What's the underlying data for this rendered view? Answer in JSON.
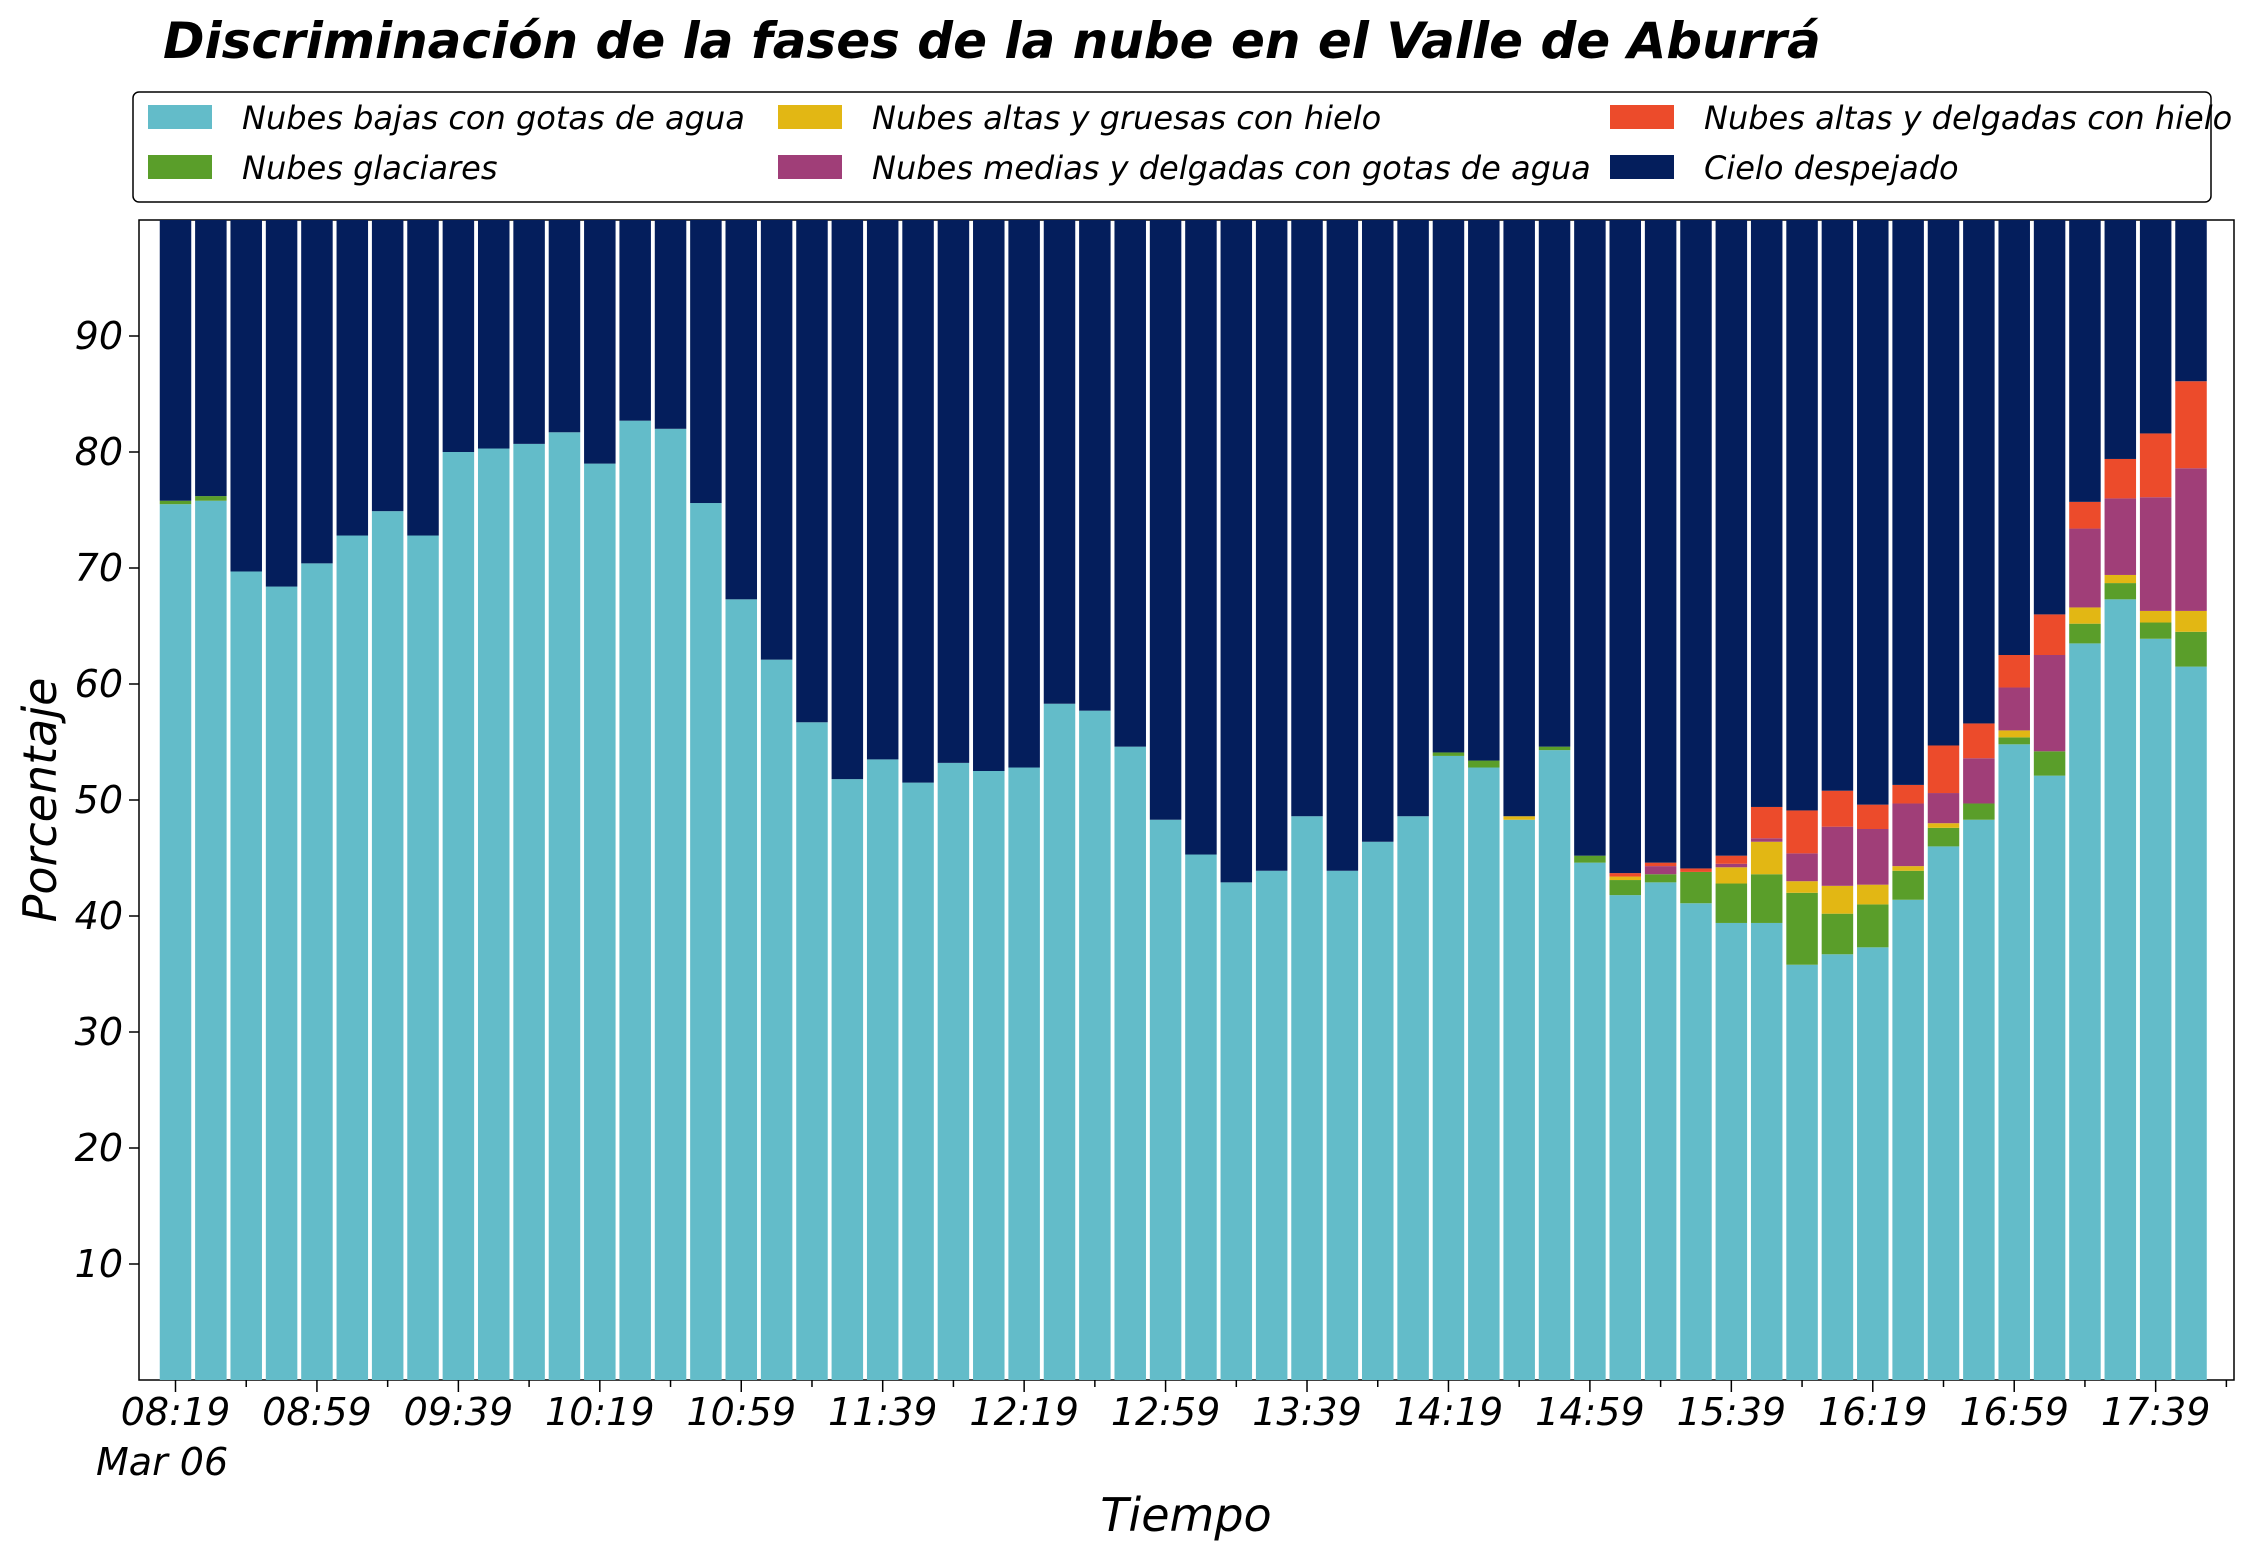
{
  "chart_data": {
    "type": "bar",
    "stacked": true,
    "title": "Discriminación de la fases de la nube en el Valle de Aburrá",
    "xlabel": "Tiempo",
    "ylabel": "Porcentaje",
    "ylim": [
      0,
      100
    ],
    "yticks": [
      10,
      20,
      30,
      40,
      50,
      60,
      70,
      80,
      90
    ],
    "xtick_labels": [
      "08:19",
      "08:59",
      "09:39",
      "10:19",
      "10:59",
      "11:39",
      "12:19",
      "12:59",
      "13:39",
      "14:19",
      "14:59",
      "15:39",
      "16:19",
      "16:59",
      "17:39"
    ],
    "date_label": "Mar 06",
    "legend_position": "top",
    "grid": false,
    "categories": [
      "08:19",
      "08:29",
      "08:39",
      "08:49",
      "08:59",
      "09:09",
      "09:19",
      "09:29",
      "09:39",
      "09:49",
      "09:59",
      "10:09",
      "10:19",
      "10:29",
      "10:39",
      "10:49",
      "10:59",
      "11:09",
      "11:19",
      "11:29",
      "11:39",
      "11:49",
      "11:59",
      "12:09",
      "12:19",
      "12:29",
      "12:39",
      "12:49",
      "12:59",
      "13:09",
      "13:19",
      "13:29",
      "13:39",
      "13:49",
      "13:59",
      "14:09",
      "14:19",
      "14:29",
      "14:39",
      "14:49",
      "14:59",
      "15:09",
      "15:19",
      "15:29",
      "15:39",
      "15:49",
      "15:59",
      "16:09",
      "16:19",
      "16:29",
      "16:39",
      "16:49",
      "16:59",
      "17:09",
      "17:19",
      "17:29",
      "17:39",
      "17:49"
    ],
    "series": [
      {
        "name": "Nubes bajas con gotas de agua",
        "color": "#63bcc9",
        "values": [
          75.5,
          75.8,
          69.7,
          68.4,
          70.4,
          72.8,
          74.9,
          72.8,
          80.0,
          80.3,
          80.7,
          81.7,
          79.0,
          82.7,
          82.0,
          75.6,
          67.3,
          62.1,
          56.7,
          51.8,
          53.5,
          51.5,
          53.2,
          52.5,
          52.8,
          58.3,
          57.7,
          54.6,
          48.3,
          45.3,
          42.9,
          43.9,
          48.6,
          43.9,
          46.4,
          48.6,
          53.8,
          52.8,
          48.3,
          54.3,
          44.6,
          41.8,
          42.9,
          41.1,
          39.4,
          39.4,
          35.8,
          36.7,
          37.3,
          41.4,
          46.0,
          48.3,
          54.8,
          52.1,
          63.5,
          67.3,
          63.9,
          61.5
        ]
      },
      {
        "name": "Nubes glaciares",
        "color": "#5a9e2a",
        "values": [
          0.3,
          0.4,
          0,
          0,
          0,
          0,
          0,
          0,
          0,
          0,
          0,
          0,
          0,
          0,
          0,
          0,
          0,
          0,
          0,
          0,
          0,
          0,
          0,
          0,
          0,
          0,
          0,
          0,
          0,
          0,
          0,
          0,
          0,
          0,
          0,
          0,
          0.3,
          0.6,
          0,
          0.3,
          0.6,
          1.3,
          0.7,
          2.7,
          3.4,
          4.2,
          6.2,
          3.5,
          3.7,
          2.5,
          1.6,
          1.4,
          0.6,
          2.1,
          1.7,
          1.4,
          1.4,
          3.0
        ]
      },
      {
        "name": "Nubes altas y gruesas con hielo",
        "color": "#e2b714",
        "values": [
          0,
          0,
          0,
          0,
          0,
          0,
          0,
          0,
          0,
          0,
          0,
          0,
          0,
          0,
          0,
          0,
          0,
          0,
          0,
          0,
          0,
          0,
          0,
          0,
          0,
          0,
          0,
          0,
          0,
          0,
          0,
          0,
          0,
          0,
          0,
          0,
          0,
          0,
          0.3,
          0,
          0,
          0.3,
          0,
          0,
          1.4,
          2.8,
          1.0,
          2.4,
          1.7,
          0.4,
          0.4,
          0,
          0.6,
          0,
          1.4,
          0.7,
          1.0,
          1.8
        ]
      },
      {
        "name": "Nubes medias y delgadas con gotas de agua",
        "color": "#a03e78",
        "values": [
          0,
          0,
          0,
          0,
          0,
          0,
          0,
          0,
          0,
          0,
          0,
          0,
          0,
          0,
          0,
          0,
          0,
          0,
          0,
          0,
          0,
          0,
          0,
          0,
          0,
          0,
          0,
          0,
          0,
          0,
          0,
          0,
          0,
          0,
          0,
          0,
          0,
          0,
          0,
          0,
          0,
          0,
          0.7,
          0,
          0.3,
          0.3,
          2.4,
          5.1,
          4.8,
          5.4,
          2.6,
          3.9,
          3.7,
          8.3,
          6.8,
          6.6,
          9.8,
          12.3
        ]
      },
      {
        "name": "Nubes altas y delgadas con hielo",
        "color": "#ec4b2b",
        "values": [
          0,
          0,
          0,
          0,
          0,
          0,
          0,
          0,
          0,
          0,
          0,
          0,
          0,
          0,
          0,
          0,
          0,
          0,
          0,
          0,
          0,
          0,
          0,
          0,
          0,
          0,
          0,
          0,
          0,
          0,
          0,
          0,
          0,
          0,
          0,
          0,
          0,
          0,
          0,
          0,
          0,
          0.3,
          0.3,
          0.3,
          0.7,
          2.7,
          3.7,
          3.1,
          2.1,
          1.6,
          4.1,
          3.0,
          2.8,
          3.5,
          2.3,
          3.4,
          5.5,
          7.5
        ]
      },
      {
        "name": "Cielo despejado",
        "color": "#041e5c",
        "values": [
          24.2,
          23.8,
          30.3,
          31.6,
          29.6,
          27.2,
          25.1,
          27.2,
          20.0,
          19.7,
          19.3,
          18.3,
          21.0,
          17.3,
          18.0,
          24.4,
          32.7,
          37.9,
          43.3,
          48.2,
          46.5,
          48.5,
          46.8,
          47.5,
          47.2,
          41.7,
          42.3,
          45.4,
          51.7,
          54.7,
          57.1,
          56.1,
          51.4,
          56.1,
          53.6,
          51.4,
          45.9,
          46.6,
          51.4,
          45.4,
          54.8,
          56.3,
          55.4,
          55.9,
          54.8,
          50.6,
          50.9,
          49.2,
          50.4,
          48.7,
          45.3,
          43.4,
          37.5,
          34.0,
          24.3,
          20.6,
          18.4,
          13.9
        ]
      }
    ]
  }
}
